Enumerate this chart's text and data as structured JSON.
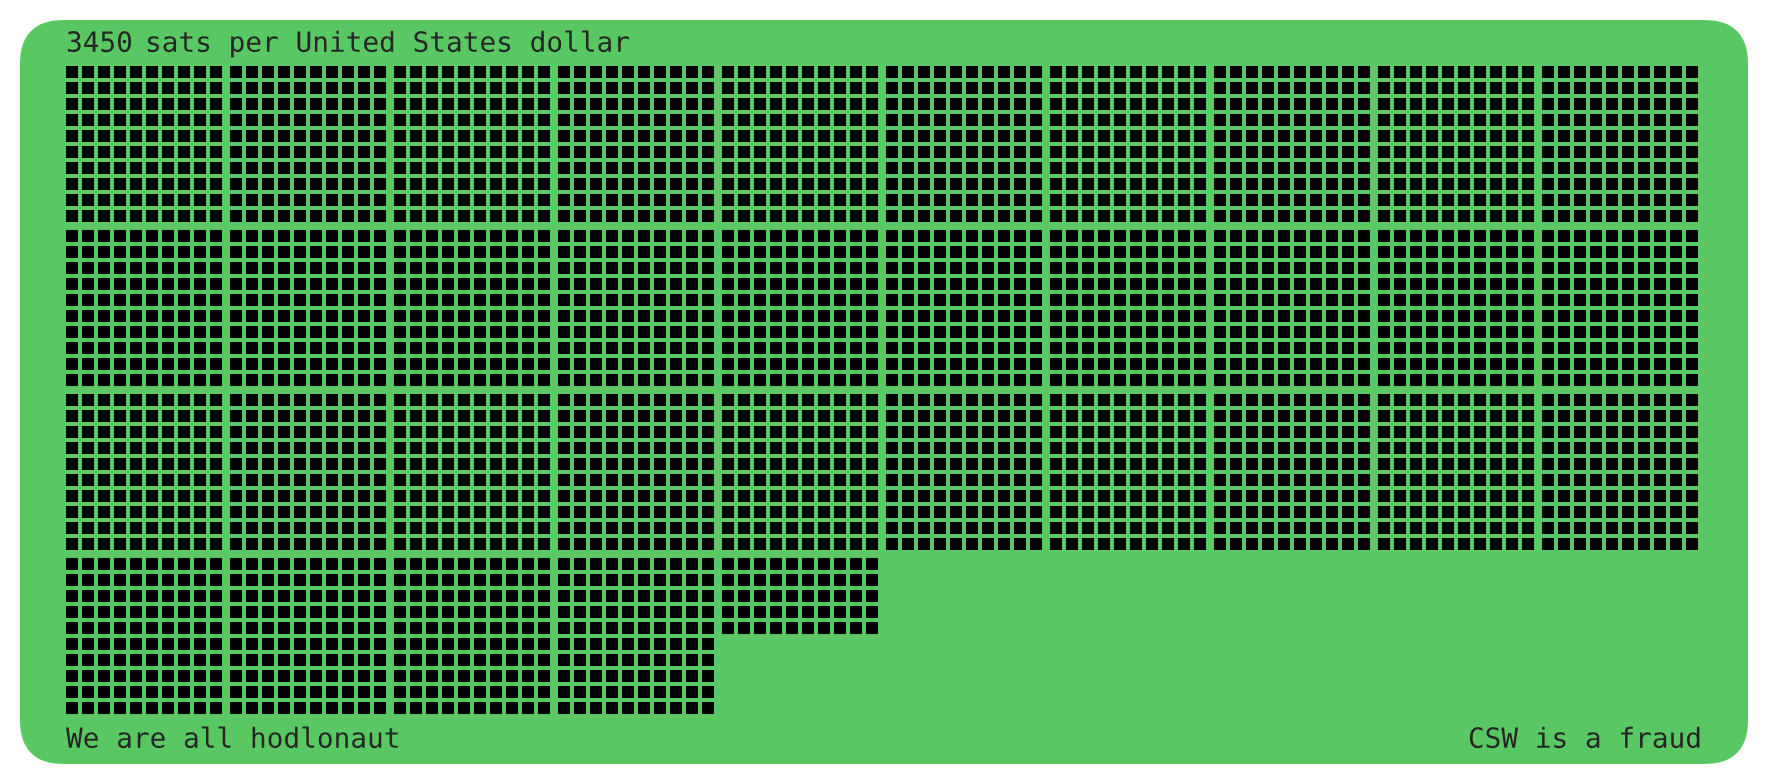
{
  "chart_data": {
    "type": "other",
    "title": "sats per United States dollar",
    "data_labels": true,
    "values": [
      3450
    ],
    "color": "#000000",
    "annotations": [
      "We are all hodlonaut",
      "CSW is a fraud"
    ]
  }
}
